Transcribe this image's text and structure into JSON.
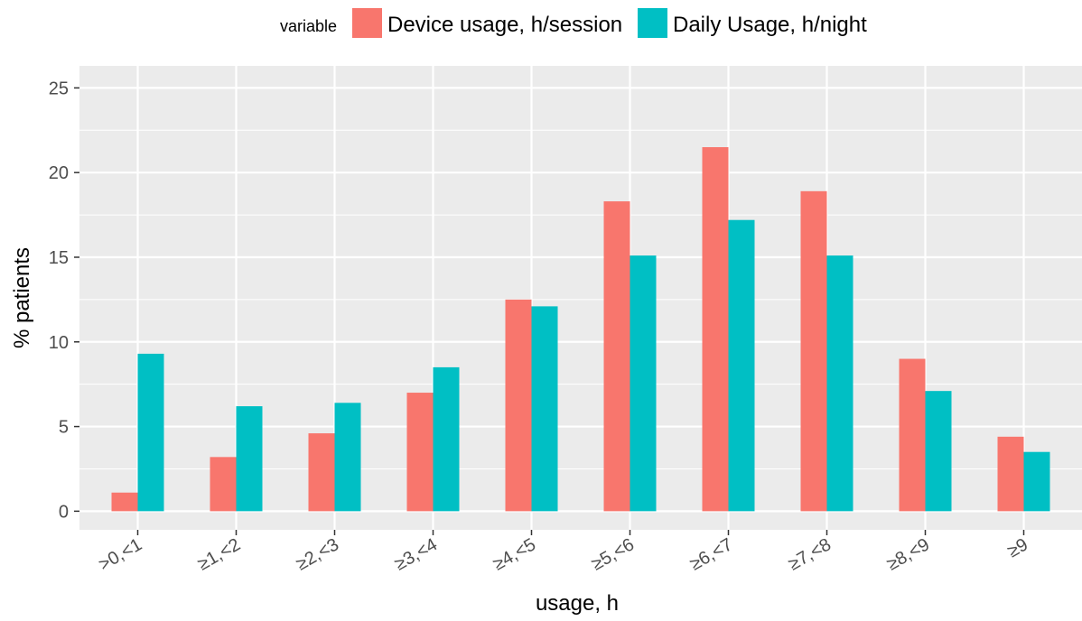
{
  "chart_data": {
    "type": "bar",
    "categories": [
      ">0,<1",
      "≥1,<2",
      "≥2,<3",
      "≥3,<4",
      "≥4,<5",
      "≥5,<6",
      "≥6,<7",
      "≥7,<8",
      "≥8,<9",
      "≥9"
    ],
    "series": [
      {
        "name": "Device usage, h/session",
        "color": "#F8766D",
        "values": [
          1.1,
          3.2,
          4.6,
          7.0,
          12.5,
          18.3,
          21.5,
          18.9,
          9.0,
          4.4
        ]
      },
      {
        "name": "Daily Usage, h/night",
        "color": "#00BFC4",
        "values": [
          9.3,
          6.2,
          6.4,
          8.5,
          12.1,
          15.1,
          17.2,
          15.1,
          7.1,
          3.5
        ]
      }
    ],
    "legend_title": "variable",
    "legend_position": "top",
    "xlabel": "usage, h",
    "ylabel": "% patients",
    "ylim": [
      -1.1,
      26.3
    ],
    "yticks": [
      "0",
      "5",
      "10",
      "15",
      "20",
      "25"
    ],
    "ytick_values": [
      0,
      5,
      10,
      15,
      20,
      25
    ],
    "grid": true,
    "panel_background": "#EBEBEB",
    "grid_color": "#FFFFFF"
  }
}
